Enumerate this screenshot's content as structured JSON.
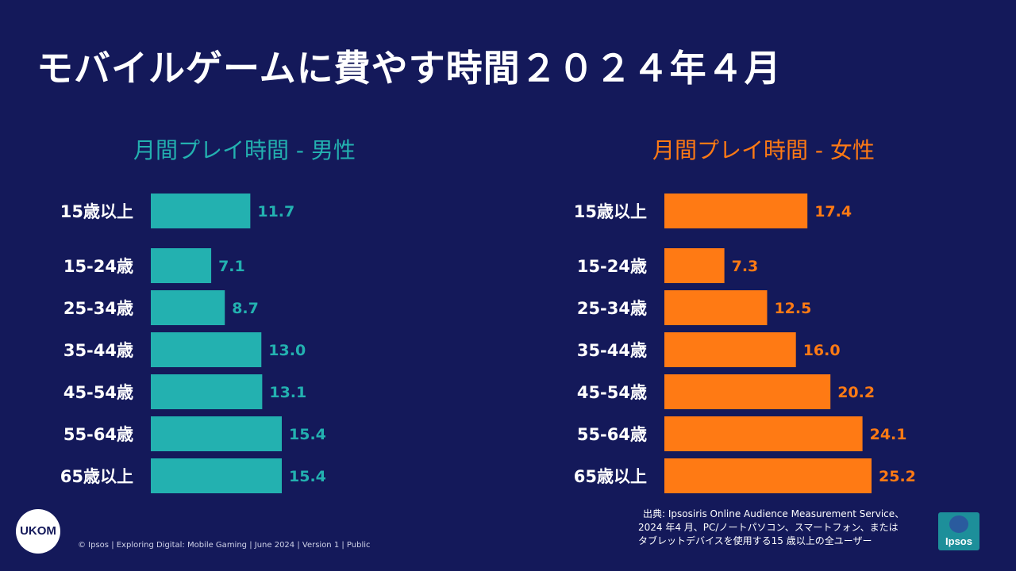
{
  "title": "モバイルゲームに費やす時間２０２４年４月",
  "colors": {
    "background": "#14195a",
    "male": "#23b1b0",
    "female": "#ff7a14",
    "text": "#ffffff"
  },
  "chart_data": [
    {
      "type": "bar",
      "orientation": "horizontal",
      "title": "月間プレイ時間 - 男性",
      "categories": [
        "15歳以上",
        "15-24歳",
        "25-34歳",
        "35-44歳",
        "45-54歳",
        "55-64歳",
        "65歳以上"
      ],
      "values": [
        11.7,
        7.1,
        8.7,
        13.0,
        13.1,
        15.4,
        15.4
      ],
      "value_labels": [
        "11.7",
        "7.1",
        "8.7",
        "13.0",
        "13.1",
        "15.4",
        "15.4"
      ],
      "color": "#23b1b0",
      "xlim": [
        0,
        28
      ],
      "grid": false,
      "xlabel": "",
      "ylabel": ""
    },
    {
      "type": "bar",
      "orientation": "horizontal",
      "title": "月間プレイ時間 - 女性",
      "categories": [
        "15歳以上",
        "15-24歳",
        "25-34歳",
        "35-44歳",
        "45-54歳",
        "55-64歳",
        "65歳以上"
      ],
      "values": [
        17.4,
        7.3,
        12.5,
        16.0,
        20.2,
        24.1,
        25.2
      ],
      "value_labels": [
        "17.4",
        "7.3",
        "12.5",
        "16.0",
        "20.2",
        "24.1",
        "25.2"
      ],
      "color": "#ff7a14",
      "xlim": [
        0,
        28
      ],
      "grid": false,
      "xlabel": "",
      "ylabel": ""
    }
  ],
  "footer": {
    "logo_ukom": "UKOM",
    "copyright": "© Ipsos | Exploring Digital: Mobile Gaming | June 2024 | Version 1 | Public",
    "source_lines": [
      "出典: Ipsosiris Online Audience Measurement Service、",
      "2024 年4 月、PC/ノートパソコン、スマートフォン、または",
      "タブレットデバイスを使用する15 歳以上の全ユーザー"
    ],
    "logo_ipsos": "Ipsos"
  }
}
